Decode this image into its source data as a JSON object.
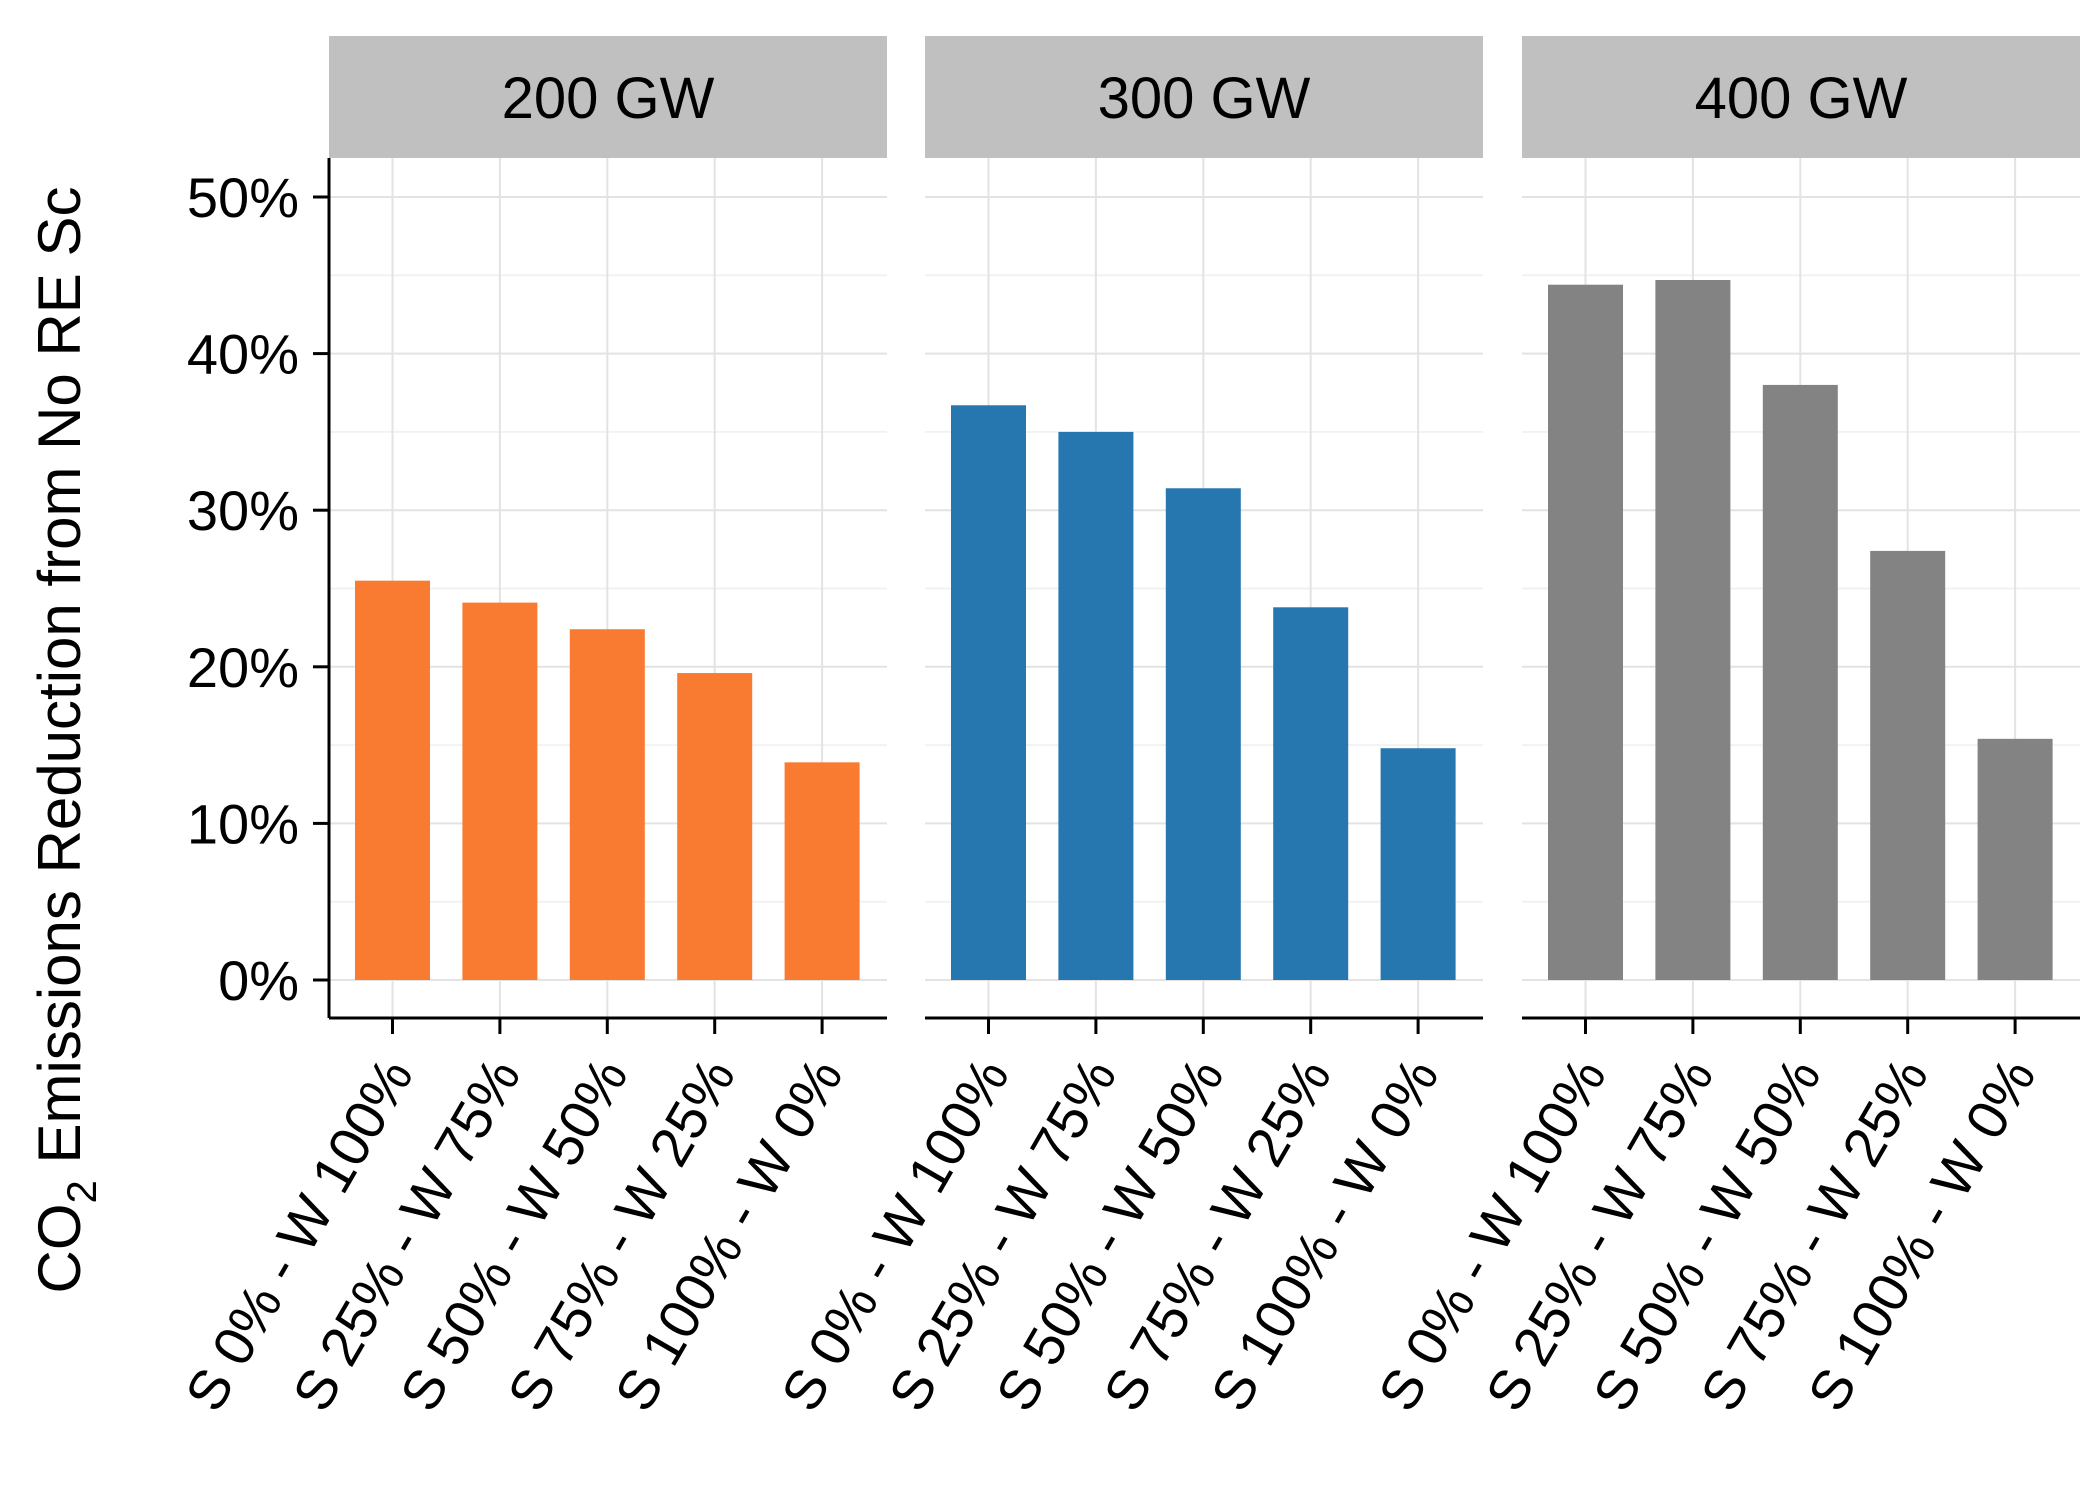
{
  "chart_data": {
    "type": "bar",
    "layout": "faceted",
    "facet_labels": [
      "200 GW",
      "300 GW",
      "400 GW"
    ],
    "categories": [
      "S 0% - W 100%",
      "S 25% - W 75%",
      "S 50% - W 50%",
      "S 75% - W 25%",
      "S 100% - W 0%"
    ],
    "series": [
      {
        "facet": "200 GW",
        "color": "#f97b32",
        "values": [
          25.5,
          24.1,
          22.4,
          19.6,
          13.9
        ]
      },
      {
        "facet": "300 GW",
        "color": "#2677b0",
        "values": [
          36.7,
          35.0,
          31.4,
          23.8,
          14.8
        ]
      },
      {
        "facet": "400 GW",
        "color": "#838383",
        "values": [
          44.4,
          44.7,
          38.0,
          27.4,
          15.4
        ]
      }
    ],
    "ylabel_prefix": "CO",
    "ylabel_subscript": "2",
    "ylabel_rest": " Emissions Reduction from No RE Sc",
    "yticks": [
      "0%",
      "10%",
      "20%",
      "30%",
      "40%",
      "50%"
    ],
    "ylim": [
      0,
      52.5
    ],
    "grid": true,
    "legend": "none"
  }
}
